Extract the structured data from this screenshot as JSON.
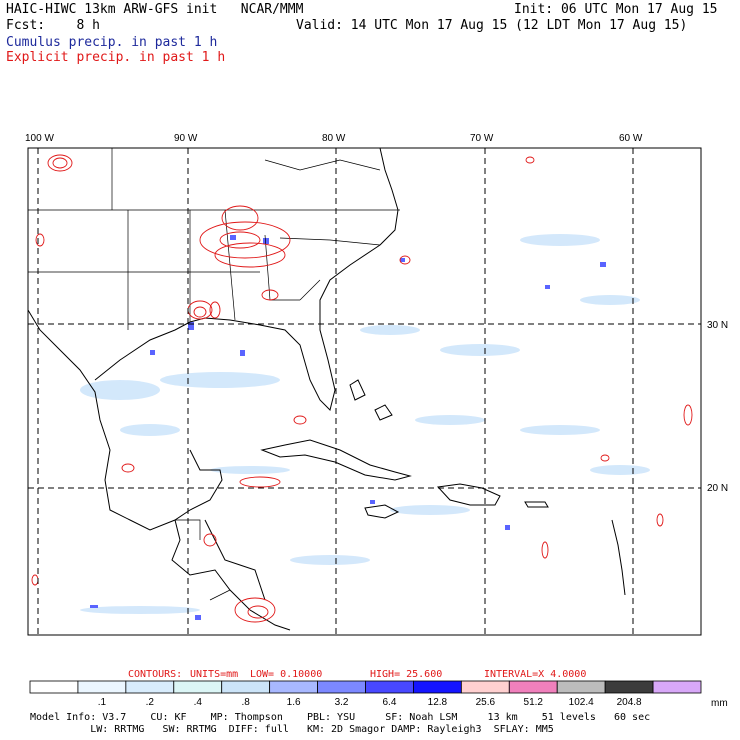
{
  "header": {
    "line1_left": "HAIC-HIWC 13km ARW-GFS init   NCAR/MMM",
    "line1_right": "Init: 06 UTC Mon 17 Aug 15",
    "line2_left": "Fcst:    8 h",
    "line2_right": "Valid: 14 UTC Mon 17 Aug 15 (12 LDT Mon 17 Aug 15)",
    "legend_cumulus": "Cumulus precip. in past 1 h",
    "legend_explicit": "Explicit precip. in past 1 h"
  },
  "colors": {
    "cumulus_text": "#1e2a9c",
    "explicit_contour": "#e01818",
    "coast": "#000000",
    "grid": "#000000"
  },
  "map": {
    "lon_labels": [
      "100 W",
      "90 W",
      "80 W",
      "70 W",
      "60 W"
    ],
    "lat_labels": [
      "30 N",
      "20 N"
    ]
  },
  "contours": {
    "label": "CONTOURS:",
    "units": "UNITS=mm",
    "low": "LOW= 0.10000",
    "high": "HIGH=  25.600",
    "interval": "INTERVAL=X  4.0000"
  },
  "colorbar": {
    "boxes": [
      "#ffffff",
      "#ebf6ff",
      "#d8ecfc",
      "#dcf6f6",
      "#cce4f8",
      "#a8b8ff",
      "#7c88ff",
      "#4848ff",
      "#1414ff",
      "#ffd0d0",
      "#f080bc",
      "#bcbcbc",
      "#3c3c3c",
      "#d8a8f8"
    ],
    "labels": [
      ".1",
      ".2",
      ".4",
      ".8",
      "1.6",
      "3.2",
      "6.4",
      "12.8",
      "25.6",
      "51.2",
      "102.4",
      "204.8"
    ],
    "unit": "mm"
  },
  "model_info": {
    "line1": "Model Info: V3.7    CU: KF    MP: Thompson    PBL: YSU     SF: Noah LSM     13 km    51 levels   60 sec",
    "line2": "          LW: RRTMG   SW: RRTMG  DIFF: full   KM: 2D Smagor DAMP: Rayleigh3  SFLAY: MM5"
  }
}
